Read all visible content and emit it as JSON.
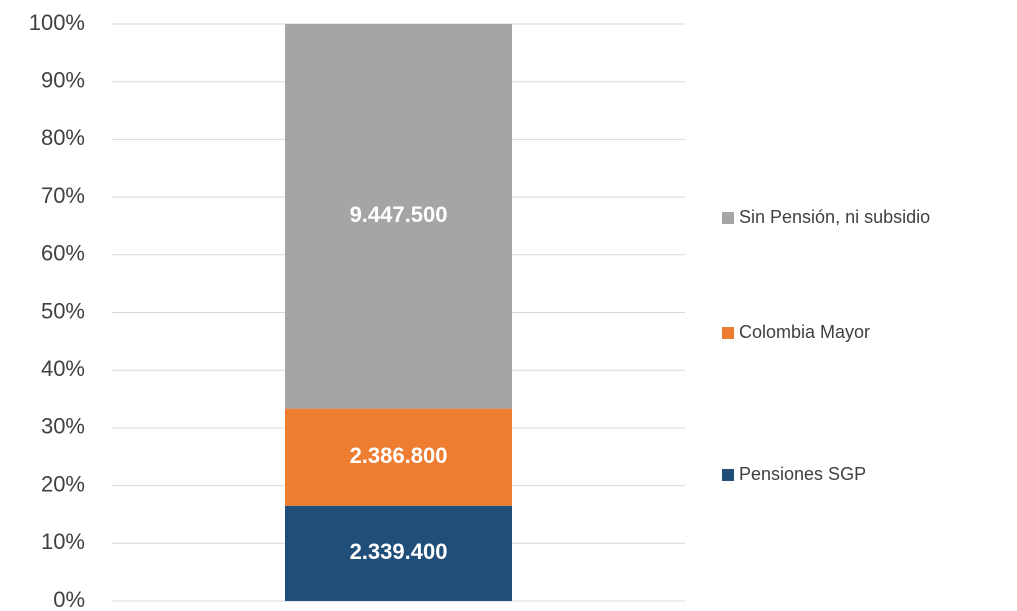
{
  "chart_data": {
    "type": "stacked_bar_percent",
    "categories": [
      null
    ],
    "series": [
      {
        "name": "Pensiones SGP",
        "color": "#1f4e79",
        "values": [
          2339400
        ],
        "value_labels": [
          "2.339.400"
        ]
      },
      {
        "name": "Colombia Mayor",
        "color": "#ed7d31",
        "values": [
          2386800
        ],
        "value_labels": [
          "2.386.800"
        ]
      },
      {
        "name": "Sin Pensión, ni subsidio",
        "color": "#a5a5a5",
        "values": [
          9447500
        ],
        "value_labels": [
          "9.447.500"
        ]
      }
    ],
    "ylim": [
      0,
      100
    ],
    "yticks": [
      {
        "value": 0,
        "label": "0%"
      },
      {
        "value": 10,
        "label": "10%"
      },
      {
        "value": 20,
        "label": "20%"
      },
      {
        "value": 30,
        "label": "30%"
      },
      {
        "value": 40,
        "label": "40%"
      },
      {
        "value": 50,
        "label": "50%"
      },
      {
        "value": 60,
        "label": "60%"
      },
      {
        "value": 70,
        "label": "70%"
      },
      {
        "value": 80,
        "label": "80%"
      },
      {
        "value": 90,
        "label": "90%"
      },
      {
        "value": 100,
        "label": "100%"
      }
    ],
    "grid": true,
    "legend": "right"
  }
}
